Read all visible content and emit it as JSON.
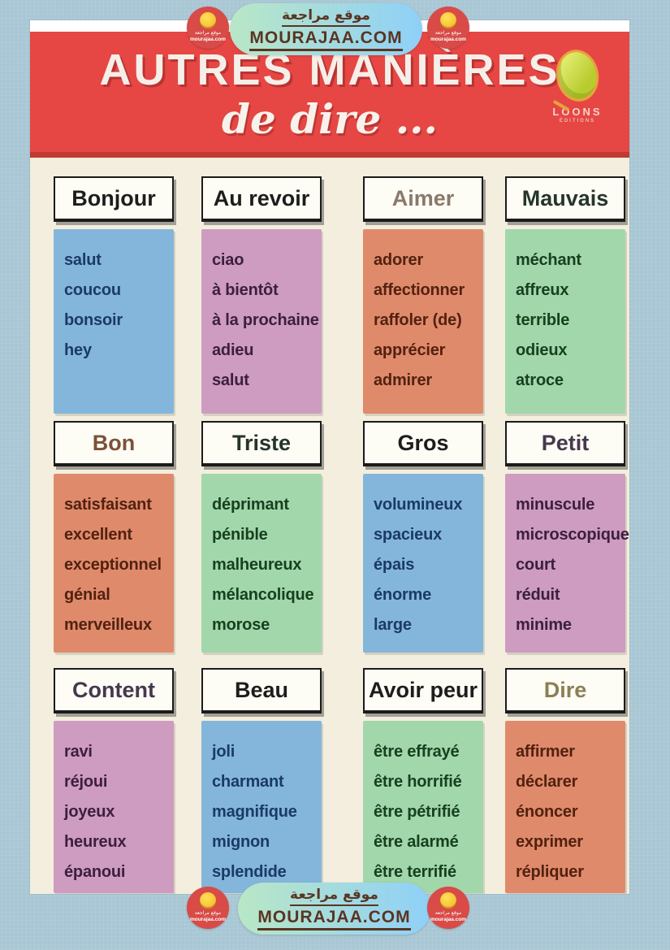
{
  "watermark": {
    "arabic": "موقع مراجعة",
    "site": "MOURAJAA.COM",
    "badge_arabic": "موقع مراجعة",
    "badge_site": "mourajaa.com"
  },
  "poster": {
    "title_line1": "AUTRES MANIÈRES",
    "title_line2": "de dire ...",
    "logo": {
      "name": "LOONS",
      "sub": "ÉDITIONS"
    },
    "cards": [
      {
        "title": "Bonjour",
        "words": [
          "salut",
          "coucou",
          "bonsoir",
          "hey"
        ]
      },
      {
        "title": "Au revoir",
        "words": [
          "ciao",
          "à bientôt",
          "à la prochaine",
          "adieu",
          "salut"
        ]
      },
      {
        "title": "Aimer",
        "words": [
          "adorer",
          "affectionner",
          "raffoler (de)",
          "apprécier",
          "admirer"
        ]
      },
      {
        "title": "Mauvais",
        "words": [
          "méchant",
          "affreux",
          "terrible",
          "odieux",
          "atroce"
        ]
      },
      {
        "title": "Bon",
        "words": [
          "satisfaisant",
          "excellent",
          "exceptionnel",
          "génial",
          "merveilleux"
        ]
      },
      {
        "title": "Triste",
        "words": [
          "déprimant",
          "pénible",
          "malheureux",
          "mélancolique",
          "morose"
        ]
      },
      {
        "title": "Gros",
        "words": [
          "volumineux",
          "spacieux",
          "épais",
          "énorme",
          "large"
        ]
      },
      {
        "title": "Petit",
        "words": [
          "minuscule",
          "microscopique",
          "court",
          "réduit",
          "minime"
        ]
      },
      {
        "title": "Content",
        "words": [
          "ravi",
          "réjoui",
          "joyeux",
          "heureux",
          "épanoui"
        ]
      },
      {
        "title": "Beau",
        "words": [
          "joli",
          "charmant",
          "magnifique",
          "mignon",
          "splendide"
        ]
      },
      {
        "title": "Avoir peur",
        "words": [
          "être effrayé",
          "être horrifié",
          "être pétrifié",
          "être alarmé",
          "être terrifié"
        ]
      },
      {
        "title": "Dire",
        "words": [
          "affirmer",
          "déclarer",
          "énoncer",
          "exprimer",
          "répliquer"
        ]
      }
    ]
  },
  "colors": {
    "canvas_bg": "#a9c7d4",
    "poster_bg": "#f3eedd",
    "header_red": "#e64744",
    "header_red_dark": "#bf3a33",
    "card_blue": "#84b6db",
    "card_pink": "#cd9cc0",
    "card_salmon": "#e08a6c",
    "card_green": "#a2d7ab",
    "badge_red": "#d84b47",
    "badge_yellow": "#f0b41c",
    "watermark_text": "#5a3522"
  }
}
